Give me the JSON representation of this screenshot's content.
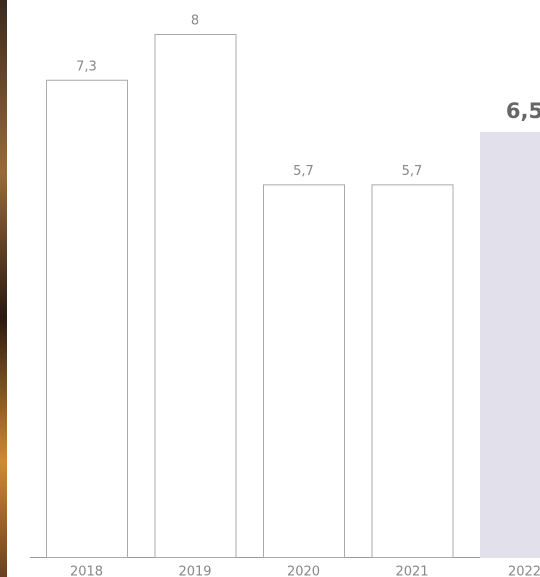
{
  "chart_data": {
    "type": "bar",
    "categories": [
      "2018",
      "2019",
      "2020",
      "2021",
      "2022"
    ],
    "values": [
      7.3,
      8,
      5.7,
      5.7,
      6.5
    ],
    "value_labels": [
      "7,3",
      "8",
      "5,7",
      "5,7",
      "6,5"
    ],
    "colors": [
      "#ffffff",
      "#ffffff",
      "#ffffff",
      "#ffffff",
      "#e2e0ea"
    ],
    "edge_colors": [
      "#aaaaaa",
      "#aaaaaa",
      "#aaaaaa",
      "#aaaaaa",
      "#e2e0ea"
    ]
  }
}
